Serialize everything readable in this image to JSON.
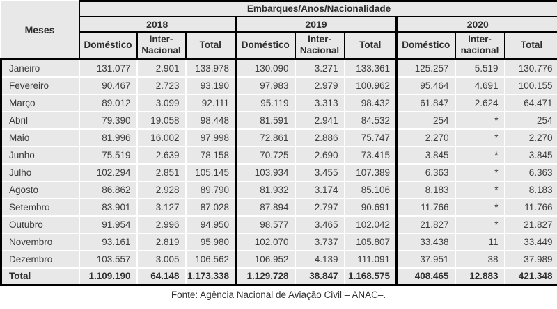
{
  "table": {
    "corner_label": "Meses",
    "title": "Embarques/Anos/Nacionalidade",
    "years": [
      "2018",
      "2019",
      "2020"
    ],
    "subcols": [
      [
        "Doméstico",
        "Inter-\nNacional",
        "Total"
      ],
      [
        "Doméstico",
        "Inter-\nNacional",
        "Total"
      ],
      [
        "Doméstico",
        "Inter-\nnacional",
        "Total"
      ]
    ],
    "rows": [
      {
        "mes": "Janeiro",
        "values": [
          "131.077",
          "2.901",
          "133.978",
          "130.090",
          "3.271",
          "133.361",
          "125.257",
          "5.519",
          "130.776"
        ]
      },
      {
        "mes": "Fevereiro",
        "values": [
          "90.467",
          "2.723",
          "93.190",
          "97.983",
          "2.979",
          "100.962",
          "95.464",
          "4.691",
          "100.155"
        ]
      },
      {
        "mes": "Março",
        "values": [
          "89.012",
          "3.099",
          "92.111",
          "95.119",
          "3.313",
          "98.432",
          "61.847",
          "2.624",
          "64.471"
        ]
      },
      {
        "mes": "Abril",
        "values": [
          "79.390",
          "19.058",
          "98.448",
          "81.591",
          "2.941",
          "84.532",
          "254",
          "*",
          "254"
        ]
      },
      {
        "mes": "Maio",
        "values": [
          "81.996",
          "16.002",
          "97.998",
          "72.861",
          "2.886",
          "75.747",
          "2.270",
          "*",
          "2.270"
        ]
      },
      {
        "mes": "Junho",
        "values": [
          "75.519",
          "2.639",
          "78.158",
          "70.725",
          "2.690",
          "73.415",
          "3.845",
          "*",
          "3.845"
        ]
      },
      {
        "mes": "Julho",
        "values": [
          "102.294",
          "2.851",
          "105.145",
          "103.934",
          "3.455",
          "107.389",
          "6.363",
          "*",
          "6.363"
        ]
      },
      {
        "mes": "Agosto",
        "values": [
          "86.862",
          "2.928",
          "89.790",
          "81.932",
          "3.174",
          "85.106",
          "8.183",
          "*",
          "8.183"
        ]
      },
      {
        "mes": "Setembro",
        "values": [
          "83.901",
          "3.127",
          "87.028",
          "87.894",
          "2.797",
          "90.691",
          "11.766",
          "*",
          "11.766"
        ]
      },
      {
        "mes": "Outubro",
        "values": [
          "91.954",
          "2.996",
          "94.950",
          "98.577",
          "3.465",
          "102.042",
          "21.827",
          "*",
          "21.827"
        ]
      },
      {
        "mes": "Novembro",
        "values": [
          "93.161",
          "2.819",
          "95.980",
          "102.070",
          "3.737",
          "105.807",
          "33.438",
          "11",
          "33.449"
        ]
      },
      {
        "mes": "Dezembro",
        "values": [
          "103.557",
          "3.005",
          "106.562",
          "106.952",
          "4.139",
          "111.091",
          "37.951",
          "38",
          "37.989"
        ]
      }
    ],
    "total": {
      "label": "Total",
      "values": [
        "1.109.190",
        "64.148",
        "1.173.338",
        "1.129.728",
        "38.847",
        "1.168.575",
        "408.465",
        "12.883",
        "421.348"
      ]
    },
    "source": "Fonte: Agência Nacional de Aviação Civil – ANAC–."
  },
  "colors": {
    "cell_background": "#e8e8e8",
    "border": "#000000",
    "text": "#3b3b3b"
  }
}
